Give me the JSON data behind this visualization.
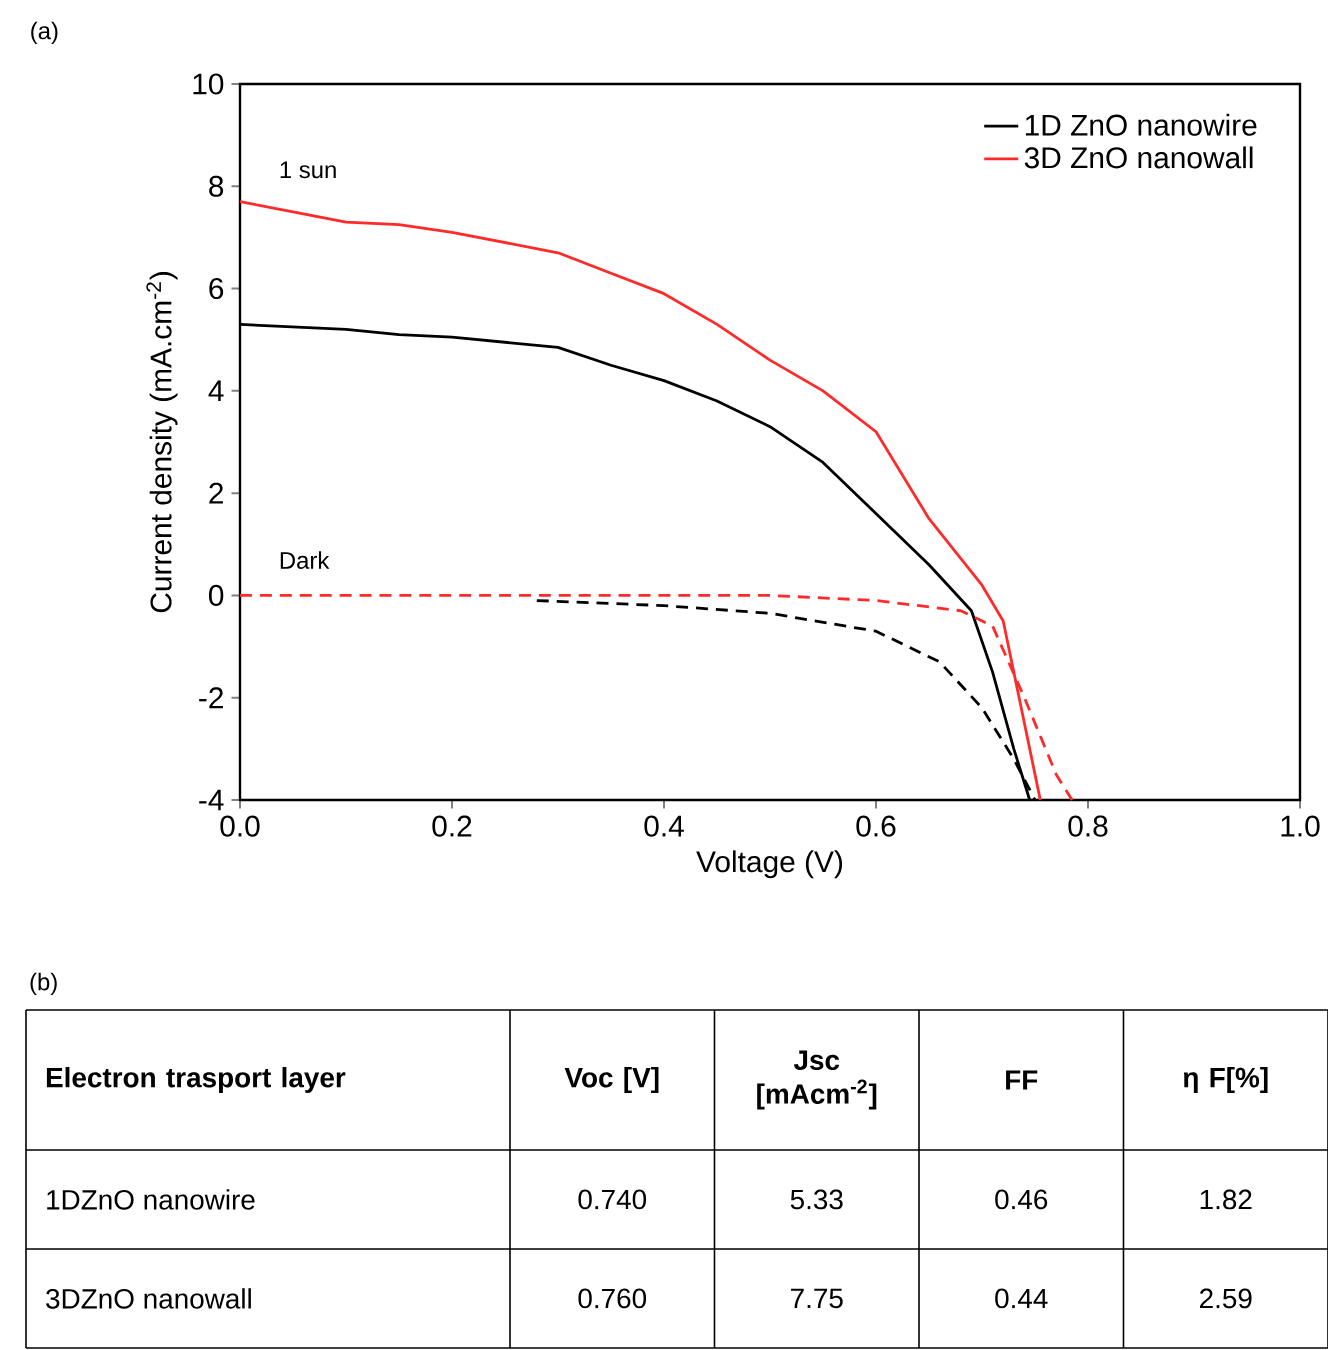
{
  "chart_data": [
    {
      "type": "line",
      "title": "(a)",
      "xlabel": "Voltage (V)",
      "ylabel": "Current density (mA.cm$^{-2}$)",
      "xlim": [
        0,
        1
      ],
      "xticks": [
        {
          "value": 0,
          "label": "0.0"
        },
        0.2,
        0.4,
        0.6,
        0.8,
        {
          "value": 1,
          "label": "1.0"
        }
      ],
      "ylim": [
        -4,
        10
      ],
      "yticks": [
        -4,
        -2,
        0,
        2,
        4,
        6,
        8,
        10
      ],
      "grid": false,
      "legend": "top right",
      "series": [
        {
          "name": "1D ZnO nanowire",
          "color": "#000000",
          "line_style": "solid",
          "x": [
            0,
            0.05,
            0.1,
            0.15,
            0.2,
            0.3,
            0.35,
            0.4,
            0.45,
            0.5,
            0.55,
            0.6,
            0.65,
            0.69,
            0.71,
            0.73,
            0.745
          ],
          "values": [
            5.3,
            5.25,
            5.2,
            5.1,
            5.05,
            4.85,
            4.5,
            4.2,
            3.8,
            3.3,
            2.6,
            1.6,
            0.6,
            -0.3,
            -1.5,
            -3.0,
            -4.0
          ]
        },
        {
          "name": "3D ZnO nanowall",
          "color": "#ff2a2a",
          "line_style": "solid",
          "x": [
            0,
            0.05,
            0.1,
            0.15,
            0.2,
            0.3,
            0.35,
            0.4,
            0.45,
            0.5,
            0.55,
            0.6,
            0.65,
            0.7,
            0.72,
            0.74,
            0.755
          ],
          "values": [
            7.7,
            7.5,
            7.3,
            7.25,
            7.1,
            6.7,
            6.3,
            5.9,
            5.3,
            4.6,
            4.0,
            3.2,
            1.5,
            0.2,
            -0.5,
            -2.5,
            -4.0
          ]
        },
        {
          "color": "#ff2a2a",
          "line_style": "dashed",
          "x": [
            0,
            0.3,
            0.5,
            0.6,
            0.68,
            0.71,
            0.74,
            0.77,
            0.785
          ],
          "values": [
            0,
            0,
            0,
            -0.1,
            -0.3,
            -0.6,
            -2.0,
            -3.5,
            -4.0
          ]
        },
        {
          "color": "#000000",
          "line_style": "dashed",
          "x": [
            0.28,
            0.4,
            0.5,
            0.6,
            0.66,
            0.7,
            0.73,
            0.75
          ],
          "values": [
            -0.1,
            -0.2,
            -0.35,
            -0.7,
            -1.3,
            -2.2,
            -3.2,
            -4.0
          ]
        }
      ],
      "annotations": [
        "1 sun",
        "Dark"
      ]
    },
    {
      "type": "other",
      "title": "(b)",
      "categories": [
        "Electron trasport layer",
        "Voc [V]",
        "Jsc [mAcm$^{-2}$]",
        "FF",
        "η F[%]"
      ],
      "annotations": [
        "1DZnO nanowire",
        "0.740",
        "5.33",
        "0.46",
        "1.82",
        "3DZnO nanowall",
        "0.760",
        "7.75",
        "0.44",
        "2.59"
      ]
    }
  ]
}
